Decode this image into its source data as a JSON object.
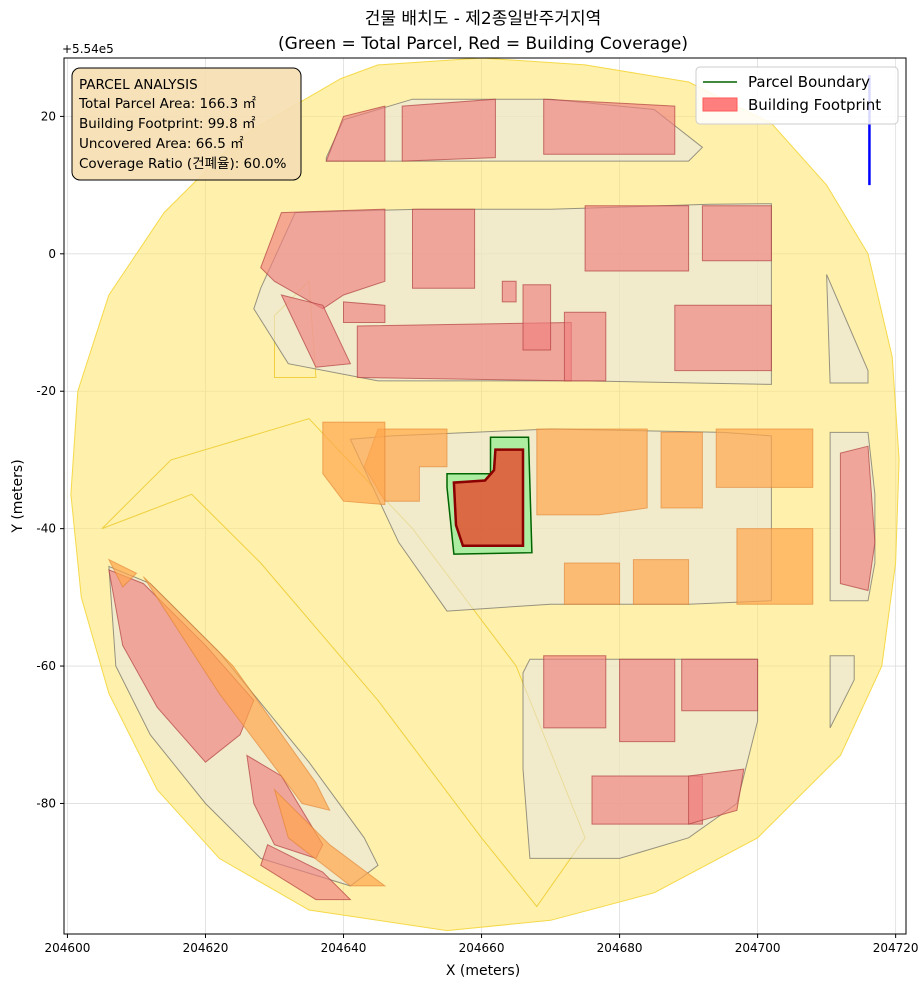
{
  "chart_data": {
    "type": "map",
    "title": "건물 배치도 - 제2종일반주거지역",
    "subtitle": "(Green = Total Parcel, Red = Building Coverage)",
    "xlabel": "X (meters)",
    "ylabel": "Y (meters)",
    "y_offset_label": "+5.54e5",
    "xlim": [
      204599.5,
      204721.5
    ],
    "ylim": [
      -99.0,
      28.5
    ],
    "x_ticks": [
      204600,
      204620,
      204640,
      204660,
      204680,
      204700,
      204720
    ],
    "x_tick_labels": [
      "204600",
      "204620",
      "204640",
      "204660",
      "204680",
      "204700",
      "204720"
    ],
    "y_ticks": [
      20,
      0,
      -20,
      -40,
      -60,
      -80
    ],
    "y_tick_labels": [
      "20",
      "0",
      "-20",
      "-40",
      "-60",
      "-80"
    ],
    "grid": true,
    "legend_position": "upper right",
    "legend": [
      {
        "label": "Parcel Boundary",
        "kind": "line",
        "color": "#006400"
      },
      {
        "label": "Building Footprint",
        "kind": "patch",
        "color": "#ff7f7f"
      }
    ],
    "info_box": {
      "title": "PARCEL ANALYSIS",
      "lines": [
        "Total Parcel Area: 166.3 ㎡",
        "Building Footprint: 99.8 ㎡",
        "Uncovered Area: 66.5 ㎡",
        "Coverage Ratio (건폐율): 60.0%"
      ]
    },
    "colors": {
      "buffer": "#ffe566",
      "parcel_fill": "#90ee90",
      "parcel_edge": "#006400",
      "building_fill": "#ff7f7f",
      "building_edge": "#8b0000",
      "neighbor_parcel": "#e6e6e6",
      "neighbor_building": "#f08080",
      "neighbor_orange": "#ffa64d",
      "north_arrow": "#0000ff",
      "info_box_bg": "#f5deb3"
    },
    "buffer_polygon": [
      [
        204639.6,
        25.5
      ],
      [
        204645.0,
        27.5
      ],
      [
        204660.0,
        28.5
      ],
      [
        204675.0,
        27.5
      ],
      [
        204690.0,
        25.0
      ],
      [
        204702.0,
        19.0
      ],
      [
        204710.0,
        10.0
      ],
      [
        204716.0,
        0.0
      ],
      [
        204719.5,
        -15.0
      ],
      [
        204720.5,
        -30.0
      ],
      [
        204720.0,
        -45.0
      ],
      [
        204718.0,
        -60.0
      ],
      [
        204712.0,
        -73.0
      ],
      [
        204700.0,
        -85.0
      ],
      [
        204685.0,
        -93.0
      ],
      [
        204670.0,
        -97.0
      ],
      [
        204655.0,
        -98.5
      ],
      [
        204635.0,
        -95.5
      ],
      [
        204622.0,
        -88.0
      ],
      [
        204613.0,
        -78.0
      ],
      [
        204606.0,
        -64.0
      ],
      [
        204602.0,
        -50.0
      ],
      [
        204600.5,
        -35.0
      ],
      [
        204601.5,
        -20.0
      ],
      [
        204606.0,
        -6.0
      ],
      [
        204614.0,
        6.0
      ],
      [
        204625.0,
        17.0
      ]
    ],
    "neighbor_parcels": [
      [
        [
          204637.5,
          14
        ],
        [
          204640,
          19.5
        ],
        [
          204650,
          22.5
        ],
        [
          204670,
          22.5
        ],
        [
          204685,
          21
        ],
        [
          204692,
          15.5
        ],
        [
          204690,
          13.5
        ],
        [
          204637.5,
          13.5
        ]
      ],
      [
        [
          204628,
          -5
        ],
        [
          204633,
          6
        ],
        [
          204651,
          6.5
        ],
        [
          204670,
          6.5
        ],
        [
          204693,
          7.2
        ],
        [
          204702,
          7.3
        ],
        [
          204702,
          -19
        ],
        [
          204675,
          -18.5
        ],
        [
          204645,
          -18.5
        ],
        [
          204632,
          -16
        ],
        [
          204627,
          -8
        ]
      ],
      [
        [
          204641,
          -27
        ],
        [
          204647,
          -26.5
        ],
        [
          204670,
          -25.5
        ],
        [
          204695,
          -26
        ],
        [
          204702,
          -26.5
        ],
        [
          204702,
          -50.5
        ],
        [
          204690,
          -51
        ],
        [
          204670,
          -51
        ],
        [
          204655,
          -52
        ],
        [
          204648,
          -42
        ]
      ],
      [
        [
          204710,
          -3
        ],
        [
          204713,
          -10
        ],
        [
          204716,
          -17
        ],
        [
          204716,
          -18.8
        ],
        [
          204710.5,
          -18.8
        ]
      ],
      [
        [
          204710.5,
          -26
        ],
        [
          204716,
          -26
        ],
        [
          204717,
          -35
        ],
        [
          204717,
          -45
        ],
        [
          204716,
          -50.5
        ],
        [
          204710.5,
          -50.5
        ]
      ],
      [
        [
          204667,
          -59
        ],
        [
          204684,
          -59
        ],
        [
          204700,
          -59
        ],
        [
          204700,
          -68
        ],
        [
          204697,
          -80
        ],
        [
          204690,
          -85
        ],
        [
          204680,
          -88
        ],
        [
          204667,
          -88
        ],
        [
          204666,
          -75
        ],
        [
          204666,
          -61
        ]
      ],
      [
        [
          204710.5,
          -58.5
        ],
        [
          204714,
          -58.5
        ],
        [
          204714,
          -62
        ],
        [
          204710.5,
          -69
        ]
      ],
      [
        [
          204606,
          -45.5
        ],
        [
          204612,
          -48
        ],
        [
          204622,
          -58
        ],
        [
          204635,
          -74
        ],
        [
          204643,
          -85
        ],
        [
          204645,
          -89
        ],
        [
          204641,
          -92
        ],
        [
          204628,
          -88
        ],
        [
          204620,
          -80
        ],
        [
          204612,
          -70
        ],
        [
          204607,
          -60
        ]
      ]
    ],
    "neighbor_buildings": [
      [
        [
          204637.5,
          13.5
        ],
        [
          204640,
          20
        ],
        [
          204646,
          21.5
        ],
        [
          204646,
          13.5
        ]
      ],
      [
        [
          204648.5,
          21.5
        ],
        [
          204662,
          22.5
        ],
        [
          204662,
          14
        ],
        [
          204648.5,
          13.5
        ]
      ],
      [
        [
          204669,
          22.5
        ],
        [
          204688,
          21.5
        ],
        [
          204688,
          14.5
        ],
        [
          204669,
          14.5
        ]
      ],
      [
        [
          204628,
          -2
        ],
        [
          204631,
          6
        ],
        [
          204646,
          6.5
        ],
        [
          204646,
          -4
        ],
        [
          204640,
          -6
        ],
        [
          204637,
          -8
        ],
        [
          204630,
          -4
        ]
      ],
      [
        [
          204650,
          6.5
        ],
        [
          204659,
          6.5
        ],
        [
          204659,
          -5
        ],
        [
          204650,
          -5
        ]
      ],
      [
        [
          204675,
          7
        ],
        [
          204690,
          7
        ],
        [
          204690,
          -2.5
        ],
        [
          204675,
          -2.5
        ]
      ],
      [
        [
          204692,
          7
        ],
        [
          204702,
          7
        ],
        [
          204702,
          -1
        ],
        [
          204692,
          -1
        ]
      ],
      [
        [
          204631,
          -6
        ],
        [
          204637,
          -7.5
        ],
        [
          204641,
          -16
        ],
        [
          204636,
          -16.5
        ]
      ],
      [
        [
          204640,
          -7
        ],
        [
          204646,
          -7.5
        ],
        [
          204646,
          -10
        ],
        [
          204640,
          -10
        ]
      ],
      [
        [
          204642,
          -10.5
        ],
        [
          204673,
          -10
        ],
        [
          204673,
          -18.5
        ],
        [
          204642,
          -18
        ]
      ],
      [
        [
          204663,
          -4
        ],
        [
          204665,
          -4
        ],
        [
          204665,
          -7
        ],
        [
          204663,
          -7
        ]
      ],
      [
        [
          204666,
          -4.5
        ],
        [
          204670,
          -4.5
        ],
        [
          204670,
          -14
        ],
        [
          204666,
          -14
        ]
      ],
      [
        [
          204672,
          -8.5
        ],
        [
          204678,
          -8.5
        ],
        [
          204678,
          -18.5
        ],
        [
          204672,
          -18.5
        ]
      ],
      [
        [
          204688,
          -7.5
        ],
        [
          204702,
          -7.5
        ],
        [
          204702,
          -17
        ],
        [
          204688,
          -17
        ]
      ],
      [
        [
          204712,
          -29
        ],
        [
          204716,
          -28
        ],
        [
          204717,
          -42
        ],
        [
          204716,
          -49
        ],
        [
          204712,
          -48
        ]
      ],
      [
        [
          204606,
          -46
        ],
        [
          204611,
          -48
        ],
        [
          204620,
          -57
        ],
        [
          204627,
          -65
        ],
        [
          204625,
          -70
        ],
        [
          204620,
          -74
        ],
        [
          204613,
          -66
        ],
        [
          204608,
          -57
        ]
      ],
      [
        [
          204626,
          -73
        ],
        [
          204631,
          -76
        ],
        [
          204637,
          -86
        ],
        [
          204636,
          -88
        ],
        [
          204630,
          -86
        ],
        [
          204627,
          -80
        ]
      ],
      [
        [
          204629,
          -86
        ],
        [
          204637,
          -90
        ],
        [
          204641,
          -94
        ],
        [
          204636,
          -94
        ],
        [
          204628,
          -89
        ]
      ],
      [
        [
          204669,
          -58.5
        ],
        [
          204678,
          -58.5
        ],
        [
          204678,
          -69
        ],
        [
          204669,
          -69
        ]
      ],
      [
        [
          204680,
          -59
        ],
        [
          204688,
          -59
        ],
        [
          204688,
          -71
        ],
        [
          204680,
          -71
        ]
      ],
      [
        [
          204689,
          -59
        ],
        [
          204700,
          -59
        ],
        [
          204700,
          -66.5
        ],
        [
          204689,
          -66.5
        ]
      ],
      [
        [
          204676,
          -76
        ],
        [
          204692,
          -76
        ],
        [
          204692,
          -83
        ],
        [
          204676,
          -83
        ]
      ],
      [
        [
          204690,
          -76
        ],
        [
          204698,
          -75
        ],
        [
          204697,
          -81
        ],
        [
          204690,
          -83
        ]
      ]
    ],
    "orange_buildings": [
      [
        [
          204645,
          -25.5
        ],
        [
          204655,
          -25.5
        ],
        [
          204655,
          -31
        ],
        [
          204651,
          -31
        ],
        [
          204651,
          -36
        ],
        [
          204646,
          -36
        ],
        [
          204643,
          -31
        ]
      ],
      [
        [
          204668,
          -25.5
        ],
        [
          204684,
          -25.5
        ],
        [
          204684,
          -37
        ],
        [
          204677,
          -38
        ],
        [
          204668,
          -38
        ]
      ],
      [
        [
          204686,
          -26
        ],
        [
          204692,
          -26
        ],
        [
          204692,
          -37
        ],
        [
          204686,
          -37
        ]
      ],
      [
        [
          204694,
          -25.5
        ],
        [
          204708,
          -25.5
        ],
        [
          204708,
          -34
        ],
        [
          204694,
          -34
        ]
      ],
      [
        [
          204672,
          -45
        ],
        [
          204680,
          -45
        ],
        [
          204680,
          -51
        ],
        [
          204672,
          -51
        ]
      ],
      [
        [
          204682,
          -44.5
        ],
        [
          204690,
          -44.5
        ],
        [
          204690,
          -51
        ],
        [
          204682,
          -51
        ]
      ],
      [
        [
          204697,
          -40
        ],
        [
          204708,
          -40
        ],
        [
          204708,
          -51
        ],
        [
          204697,
          -51
        ]
      ],
      [
        [
          204637,
          -24.5
        ],
        [
          204646,
          -24.5
        ],
        [
          204646,
          -36.5
        ],
        [
          204640,
          -36
        ],
        [
          204637,
          -32
        ]
      ],
      [
        [
          204606,
          -44.5
        ],
        [
          204610,
          -46.5
        ],
        [
          204608,
          -48.5
        ]
      ],
      [
        [
          204611,
          -47
        ],
        [
          204624,
          -60
        ],
        [
          204636,
          -77
        ],
        [
          204638,
          -81
        ],
        [
          204634,
          -80
        ],
        [
          204622,
          -64
        ]
      ],
      [
        [
          204630,
          -78
        ],
        [
          204638,
          -86
        ],
        [
          204646,
          -92
        ],
        [
          204641,
          -92
        ],
        [
          204632,
          -85
        ]
      ]
    ],
    "road_outlines": [
      [
        [
          204605,
          -40
        ],
        [
          204615,
          -30
        ],
        [
          204635,
          -24
        ],
        [
          204650,
          -40
        ],
        [
          204665,
          -60
        ],
        [
          204675,
          -85
        ],
        [
          204668,
          -95
        ],
        [
          204660,
          -85
        ],
        [
          204645,
          -65
        ],
        [
          204628,
          -45
        ],
        [
          204618,
          -35
        ]
      ],
      [
        [
          204630,
          -9
        ],
        [
          204635,
          -4
        ],
        [
          204636,
          -18
        ],
        [
          204630,
          -18
        ]
      ]
    ],
    "target_parcel": [
      [
        204661.3,
        -26.7
      ],
      [
        204666.8,
        -26.7
      ],
      [
        204667.3,
        -43.5
      ],
      [
        204656.0,
        -43.7
      ],
      [
        204655.0,
        -34.0
      ],
      [
        204655.0,
        -32.0
      ],
      [
        204661.3,
        -32.0
      ]
    ],
    "target_building": [
      [
        204662.0,
        -28.5
      ],
      [
        204666.0,
        -28.5
      ],
      [
        204666.0,
        -42.5
      ],
      [
        204657.3,
        -42.5
      ],
      [
        204656.3,
        -39.5
      ],
      [
        204656.0,
        -33.3
      ],
      [
        204660.5,
        -33.0
      ],
      [
        204661.8,
        -31.5
      ]
    ],
    "north_arrow": {
      "x": 204716.2,
      "y_from": 10.0,
      "y_to": 26.0
    }
  }
}
